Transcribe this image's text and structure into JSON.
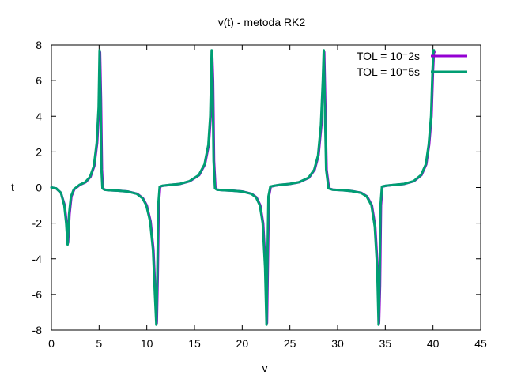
{
  "chart_data": {
    "type": "line",
    "title": "v(t)  -  metoda  RK2",
    "xlabel": "v",
    "ylabel": "t",
    "xlim": [
      0,
      45
    ],
    "ylim": [
      -8,
      8
    ],
    "x_ticks": [
      0,
      5,
      10,
      15,
      20,
      25,
      30,
      35,
      40,
      45
    ],
    "y_ticks": [
      -8,
      -6,
      -4,
      -2,
      0,
      2,
      4,
      6,
      8
    ],
    "x_tick_labels": [
      "0",
      "5",
      "10",
      "15",
      "20",
      "25",
      "30",
      "35",
      "40",
      "45"
    ],
    "y_tick_labels": [
      "-8",
      "-6",
      "-4",
      "-2",
      "0",
      "2",
      "4",
      "6",
      "8"
    ],
    "grid": false,
    "legend_position": "top-right",
    "series": [
      {
        "name": "TOL = 10⁻2s",
        "color": "#9400d3",
        "x": [
          0,
          0.5,
          1.0,
          1.4,
          1.6,
          1.75,
          1.9,
          2.1,
          2.4,
          3.0,
          3.6,
          4.1,
          4.5,
          4.8,
          5.0,
          5.1,
          5.2,
          5.3,
          5.4,
          5.6,
          6.0,
          7.0,
          8.0,
          9.0,
          9.6,
          10.0,
          10.4,
          10.7,
          10.9,
          11.05,
          11.15,
          11.25,
          11.4,
          11.7,
          12.5,
          13.5,
          14.5,
          15.5,
          16.1,
          16.5,
          16.7,
          16.85,
          16.95,
          17.05,
          17.2,
          17.4,
          18.0,
          19.0,
          20.0,
          21.0,
          21.5,
          21.9,
          22.2,
          22.45,
          22.6,
          22.7,
          22.8,
          23.0,
          23.4,
          24.0,
          25.0,
          26.0,
          27.0,
          27.6,
          28.0,
          28.3,
          28.5,
          28.6,
          28.7,
          28.85,
          29.1,
          29.5,
          30.5,
          31.5,
          32.5,
          33.1,
          33.6,
          33.95,
          34.2,
          34.35,
          34.45,
          34.55,
          34.7,
          35.1,
          36.0,
          37.0,
          38.0,
          38.8,
          39.3,
          39.6,
          39.85,
          40.0,
          40.1,
          40.15
        ],
        "y": [
          0,
          -0.05,
          -0.3,
          -1.0,
          -2.0,
          -3.1,
          -1.5,
          -0.5,
          -0.1,
          0.15,
          0.3,
          0.6,
          1.2,
          2.5,
          4.5,
          7.6,
          5.0,
          1.0,
          -0.05,
          -0.12,
          -0.15,
          -0.18,
          -0.22,
          -0.35,
          -0.6,
          -1.0,
          -1.9,
          -3.5,
          -6.0,
          -7.6,
          -5.0,
          -1.0,
          0.05,
          0.1,
          0.15,
          0.2,
          0.35,
          0.7,
          1.3,
          2.4,
          4.0,
          7.6,
          6.0,
          1.5,
          -0.05,
          -0.12,
          -0.15,
          -0.18,
          -0.22,
          -0.35,
          -0.55,
          -1.0,
          -2.0,
          -4.5,
          -7.6,
          -4.0,
          -0.5,
          0.05,
          0.1,
          0.15,
          0.2,
          0.3,
          0.55,
          1.0,
          1.8,
          3.5,
          6.0,
          7.6,
          5.0,
          1.0,
          -0.05,
          -0.12,
          -0.15,
          -0.2,
          -0.3,
          -0.5,
          -1.0,
          -2.2,
          -4.5,
          -7.6,
          -5.5,
          -1.0,
          0.05,
          0.1,
          0.15,
          0.2,
          0.35,
          0.7,
          1.3,
          2.4,
          4.0,
          6.5,
          7.6,
          7.6
        ]
      },
      {
        "name": "TOL = 10⁻5s",
        "color": "#009e73",
        "x": [
          0,
          0.5,
          1.0,
          1.35,
          1.55,
          1.7,
          1.85,
          2.05,
          2.35,
          2.95,
          3.55,
          4.05,
          4.45,
          4.75,
          4.95,
          5.05,
          5.15,
          5.25,
          5.35,
          5.55,
          5.95,
          6.95,
          7.95,
          8.95,
          9.55,
          9.95,
          10.35,
          10.65,
          10.85,
          11.0,
          11.1,
          11.2,
          11.35,
          11.65,
          12.45,
          13.45,
          14.45,
          15.45,
          16.05,
          16.45,
          16.65,
          16.8,
          16.9,
          17.0,
          17.15,
          17.35,
          17.95,
          18.95,
          19.95,
          20.95,
          21.45,
          21.85,
          22.15,
          22.4,
          22.55,
          22.65,
          22.75,
          22.95,
          23.35,
          23.95,
          24.95,
          25.95,
          26.95,
          27.55,
          27.95,
          28.25,
          28.45,
          28.55,
          28.65,
          28.8,
          29.05,
          29.45,
          30.45,
          31.45,
          32.45,
          33.05,
          33.55,
          33.9,
          34.15,
          34.3,
          34.4,
          34.5,
          34.65,
          35.05,
          35.95,
          36.95,
          37.95,
          38.75,
          39.25,
          39.55,
          39.8,
          39.95,
          40.05,
          40.1
        ],
        "y": [
          0,
          -0.05,
          -0.3,
          -1.0,
          -2.0,
          -3.2,
          -1.5,
          -0.5,
          -0.1,
          0.15,
          0.3,
          0.6,
          1.2,
          2.5,
          4.5,
          7.7,
          5.0,
          1.0,
          -0.05,
          -0.12,
          -0.15,
          -0.18,
          -0.22,
          -0.35,
          -0.6,
          -1.0,
          -1.9,
          -3.5,
          -6.0,
          -7.7,
          -5.0,
          -1.0,
          0.05,
          0.1,
          0.15,
          0.2,
          0.35,
          0.7,
          1.3,
          2.4,
          4.0,
          7.7,
          6.0,
          1.5,
          -0.05,
          -0.12,
          -0.15,
          -0.18,
          -0.22,
          -0.35,
          -0.55,
          -1.0,
          -2.0,
          -4.5,
          -7.7,
          -4.0,
          -0.5,
          0.05,
          0.1,
          0.15,
          0.2,
          0.3,
          0.55,
          1.0,
          1.8,
          3.5,
          6.0,
          7.7,
          5.0,
          1.0,
          -0.05,
          -0.12,
          -0.15,
          -0.2,
          -0.3,
          -0.5,
          -1.0,
          -2.2,
          -4.5,
          -7.7,
          -5.5,
          -1.0,
          0.05,
          0.1,
          0.15,
          0.2,
          0.35,
          0.7,
          1.3,
          2.4,
          4.0,
          6.5,
          7.7,
          7.7
        ]
      }
    ]
  }
}
